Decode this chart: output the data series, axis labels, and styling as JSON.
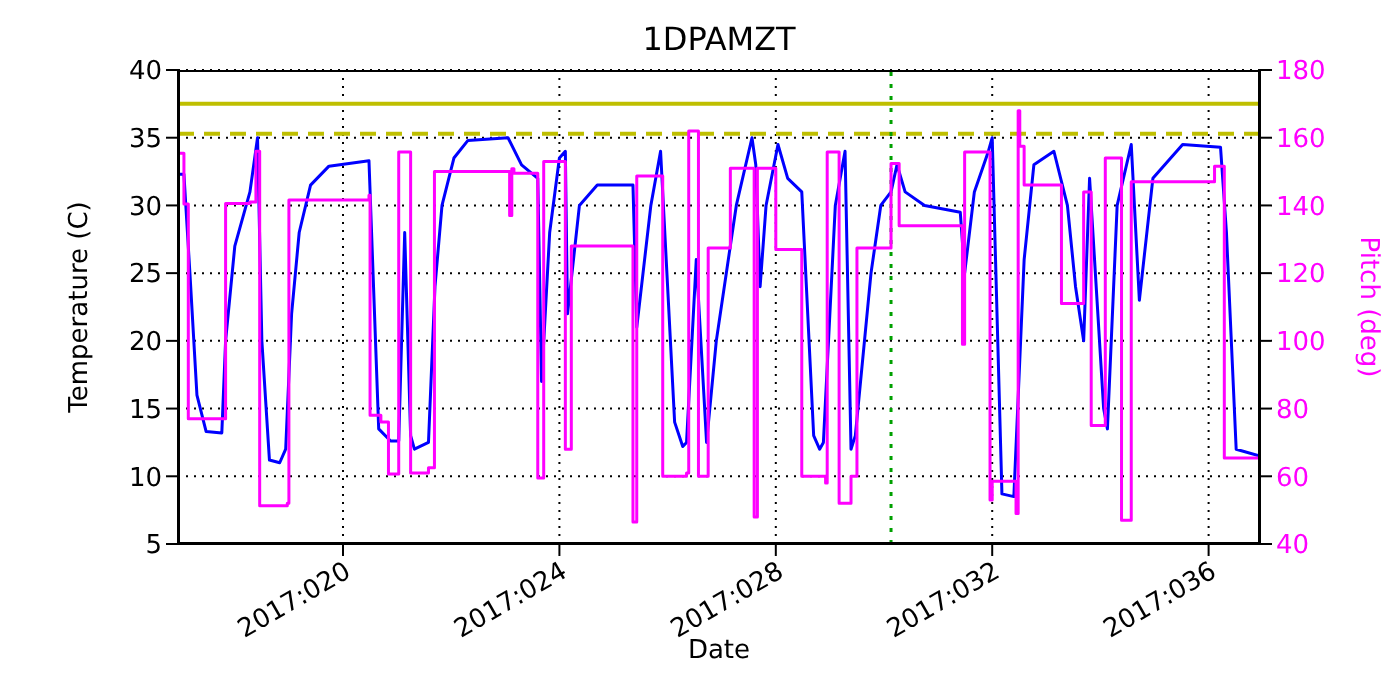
{
  "chart_data": {
    "type": "line",
    "title": "1DPAMZT",
    "xlabel": "Date",
    "ylabel": "Temperature (C)",
    "y2label": "Pitch (deg)",
    "xlim": [
      "2017-01-16T22:48",
      "2017-02-05T22:48"
    ],
    "xticks": [
      {
        "value": "2017-01-20",
        "label": "2017:020"
      },
      {
        "value": "2017-01-24",
        "label": "2017:024"
      },
      {
        "value": "2017-01-28",
        "label": "2017:028"
      },
      {
        "value": "2017-02-01",
        "label": "2017:032"
      },
      {
        "value": "2017-02-05",
        "label": "2017:036"
      }
    ],
    "ylim": [
      5,
      40
    ],
    "yticks": [
      5,
      10,
      15,
      20,
      25,
      30,
      35,
      40
    ],
    "y2lim": [
      40,
      180
    ],
    "y2ticks": [
      40,
      60,
      80,
      100,
      120,
      140,
      160,
      180
    ],
    "grid": true,
    "ref_lines": [
      {
        "axis": "y",
        "value": 37.5,
        "color": "#bfbf00",
        "line_style": "solid"
      },
      {
        "axis": "y",
        "value": 35.3,
        "color": "#bfbf00",
        "line_style": "dashed"
      },
      {
        "axis": "x",
        "value": "2017-01-30T03:07",
        "color": "#00a000",
        "line_style": "dotted"
      }
    ],
    "series": [
      {
        "type": "line",
        "color": "#0000ff",
        "x": [
          "2017-01-16T22:48",
          "2017-01-17T01:26",
          "2017-01-17T04:05",
          "2017-01-17T07:12",
          "2017-01-17T11:17",
          "2017-01-17T18:14",
          "2017-01-17T19:55",
          "2017-01-18T00:00",
          "2017-01-18T06:43",
          "2017-01-18T10:05",
          "2017-01-18T12:00",
          "2017-01-18T15:22",
          "2017-01-18T19:55",
          "2017-01-18T22:34",
          "2017-01-19T01:12",
          "2017-01-19T04:34",
          "2017-01-19T09:36",
          "2017-01-19T17:46",
          "2017-01-20T11:31",
          "2017-01-20T15:50",
          "2017-01-20T21:07",
          "2017-01-21T00:43",
          "2017-01-21T03:22",
          "2017-01-21T06:00",
          "2017-01-21T07:41",
          "2017-01-21T13:55",
          "2017-01-21T16:48",
          "2017-01-21T19:55",
          "2017-01-22T01:12",
          "2017-01-22T07:26",
          "2017-01-23T01:12",
          "2017-01-23T07:12",
          "2017-01-23T14:24",
          "2017-01-23T16:05",
          "2017-01-23T19:41",
          "2017-01-24T00:00",
          "2017-01-24T02:38",
          "2017-01-24T03:36",
          "2017-01-24T08:53",
          "2017-01-24T16:48",
          "2017-01-25T08:38",
          "2017-01-25T10:19",
          "2017-01-25T16:34",
          "2017-01-25T20:53",
          "2017-01-26T03:07",
          "2017-01-26T06:43",
          "2017-01-26T08:24",
          "2017-01-26T12:43",
          "2017-01-26T17:17",
          "2017-01-26T21:36",
          "2017-01-27T06:29",
          "2017-01-27T13:26",
          "2017-01-27T15:07",
          "2017-01-27T17:02",
          "2017-01-27T19:41",
          "2017-01-28T00:58",
          "2017-01-28T05:17",
          "2017-01-28T11:31",
          "2017-01-28T16:48",
          "2017-01-28T19:26",
          "2017-01-28T21:07",
          "2017-01-29T02:24",
          "2017-01-29T06:43",
          "2017-01-29T09:22",
          "2017-01-29T11:17",
          "2017-01-29T18:14",
          "2017-01-29T22:34",
          "2017-01-30T03:07",
          "2017-01-30T05:46",
          "2017-01-30T09:22",
          "2017-01-30T18:00",
          "2017-01-31T09:50",
          "2017-01-31T11:46",
          "2017-01-31T16:05",
          "2017-01-31T22:19",
          "2017-02-01T00:00",
          "2017-02-01T04:19",
          "2017-02-01T09:36",
          "2017-02-01T14:10",
          "2017-02-01T18:29",
          "2017-02-02T03:22",
          "2017-02-02T09:22",
          "2017-02-02T12:58",
          "2017-02-02T16:34",
          "2017-02-02T19:12",
          "2017-02-03T01:26",
          "2017-02-03T03:07",
          "2017-02-03T07:26",
          "2017-02-03T13:41",
          "2017-02-03T17:17",
          "2017-02-03T23:17",
          "2017-02-04T12:29",
          "2017-02-05T05:17",
          "2017-02-05T07:55",
          "2017-02-05T12:14",
          "2017-02-05T22:48"
        ],
        "values": [
          32.3,
          32.3,
          25,
          16,
          13.3,
          13.2,
          20,
          27,
          31,
          35,
          20,
          11.2,
          11,
          12,
          22,
          28,
          31.5,
          32.9,
          33.3,
          13.5,
          12.6,
          12.6,
          28,
          13,
          12,
          12.5,
          24,
          30,
          33.5,
          34.8,
          35,
          33,
          32,
          17,
          28,
          33.5,
          34,
          22,
          30,
          31.5,
          31.5,
          21,
          30,
          34,
          14,
          12.2,
          12.5,
          26,
          12.5,
          20,
          30,
          35,
          33,
          24,
          30,
          34.5,
          32,
          31,
          13,
          12,
          12.5,
          30,
          34,
          12,
          13,
          25,
          30,
          31,
          33,
          31,
          30,
          29.5,
          25,
          31,
          34,
          35,
          8.7,
          8.5,
          26,
          33,
          34,
          30,
          24,
          20,
          32,
          15,
          13.5,
          30,
          34.5,
          23,
          32,
          34.5,
          34.3,
          28,
          12,
          11.5
        ]
      },
      {
        "type": "step",
        "axis": "y2",
        "color": "#ff00ff",
        "x": [
          "2017-01-16T22:48",
          "2017-01-17T01:26",
          "2017-01-17T03:22",
          "2017-01-17T19:55",
          "2017-01-18T06:43",
          "2017-01-18T09:22",
          "2017-01-18T11:02",
          "2017-01-18T23:17",
          "2017-01-19T00:00",
          "2017-01-20T11:31",
          "2017-01-20T12:00",
          "2017-01-20T16:48",
          "2017-01-20T20:10",
          "2017-01-21T00:43",
          "2017-01-21T06:00",
          "2017-01-21T13:55",
          "2017-01-21T16:34",
          "2017-01-23T01:55",
          "2017-01-23T02:53",
          "2017-01-23T03:50",
          "2017-01-23T14:24",
          "2017-01-23T17:02",
          "2017-01-24T02:38",
          "2017-01-24T05:17",
          "2017-01-25T08:38",
          "2017-01-25T10:19",
          "2017-01-25T21:50",
          "2017-01-26T08:24",
          "2017-01-26T09:22",
          "2017-01-26T13:41",
          "2017-01-26T18:00",
          "2017-01-27T03:50",
          "2017-01-27T14:24",
          "2017-01-27T15:50",
          "2017-01-28T00:00",
          "2017-01-28T11:31",
          "2017-01-28T22:05",
          "2017-01-28T22:48",
          "2017-01-29T04:05",
          "2017-01-29T09:22",
          "2017-01-29T12:00",
          "2017-01-30T03:07",
          "2017-01-30T06:43",
          "2017-01-31T10:48",
          "2017-01-31T11:46",
          "2017-01-31T23:02",
          "2017-02-01T00:00",
          "2017-02-01T10:34",
          "2017-02-01T11:31",
          "2017-02-01T12:14",
          "2017-02-01T14:10",
          "2017-02-02T06:43",
          "2017-02-02T16:34",
          "2017-02-02T19:55",
          "2017-02-03T02:10",
          "2017-02-03T09:22",
          "2017-02-03T13:41",
          "2017-02-05T02:38",
          "2017-02-05T06:58",
          "2017-02-05T22:48"
        ],
        "values": [
          155.4,
          140.4,
          77,
          140.6,
          141,
          156,
          51.3,
          52,
          141.6,
          143,
          78,
          76,
          60.7,
          155.8,
          61,
          62.5,
          150,
          137,
          150.8,
          149.5,
          59.5,
          153,
          68,
          128,
          46.5,
          148.7,
          60,
          61,
          162,
          60,
          127.4,
          151,
          48,
          151,
          127,
          60,
          58,
          155.8,
          52,
          60,
          127.4,
          152.4,
          134,
          99,
          155.8,
          53,
          58.5,
          49,
          168,
          157.5,
          146,
          111,
          144,
          75,
          154,
          47,
          147,
          151.6,
          65.4,
          65.4
        ]
      }
    ]
  }
}
